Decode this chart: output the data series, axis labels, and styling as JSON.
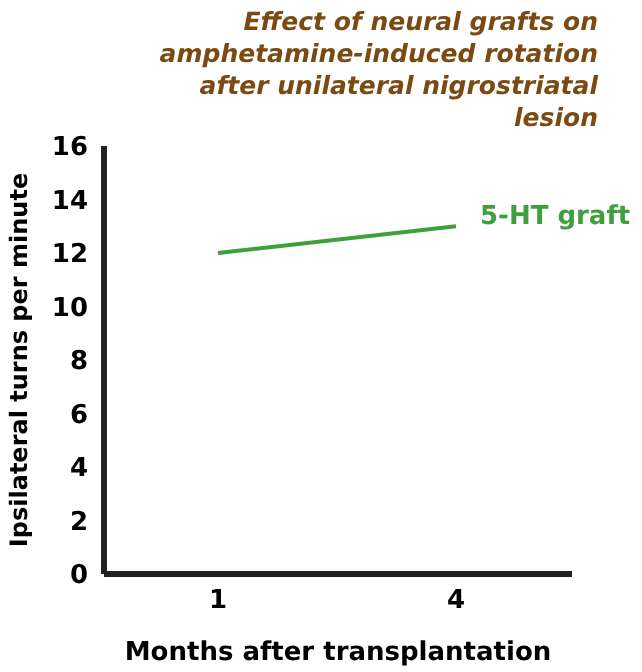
{
  "chart_data": {
    "type": "line",
    "title": "Effect of neural grafts on amphetamine-induced rotation after unilateral nigrostriatal lesion",
    "xlabel": "Months after transplantation",
    "ylabel": "Ipsilateral turns per minute",
    "categories": [
      "1",
      "4"
    ],
    "series": [
      {
        "name": "5-HT graft",
        "color": "#3f9f3f",
        "values": [
          12,
          13
        ]
      }
    ],
    "ylim": [
      0,
      16
    ],
    "yticks": [
      0,
      2,
      4,
      6,
      8,
      10,
      12,
      14,
      16
    ],
    "marker": "none"
  }
}
